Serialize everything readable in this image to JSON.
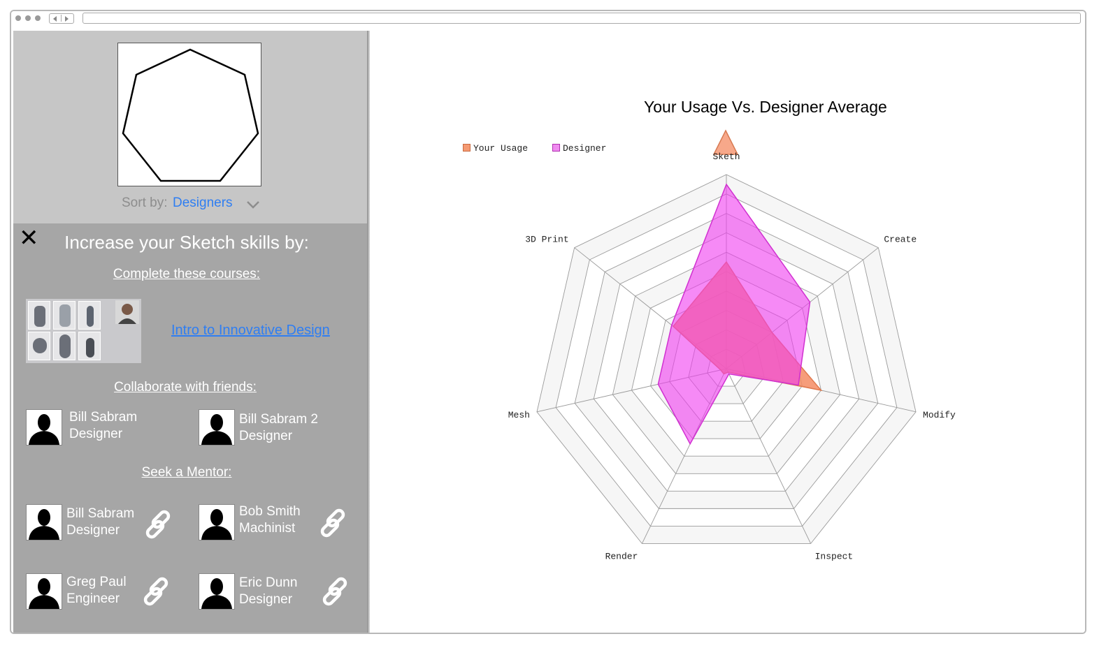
{
  "sidebar": {
    "sort_label": "Sort by:",
    "sort_value": "Designers",
    "heading": "Increase your Sketch skills by:",
    "courses_title": "Complete these courses:",
    "course_link": "Intro to Innovative Design",
    "collab_title": "Collaborate with friends:",
    "friends": [
      {
        "name": "Bill Sabram",
        "role": "Designer"
      },
      {
        "name": "Bill Sabram 2",
        "role": "Designer"
      }
    ],
    "mentor_title": "Seek a Mentor:",
    "mentors": [
      {
        "name": "Bill Sabram",
        "role": "Designer"
      },
      {
        "name": "Bob Smith",
        "role": "Machinist"
      },
      {
        "name": "Greg Paul",
        "role": "Engineer"
      },
      {
        "name": "Eric Dunn",
        "role": "Designer"
      }
    ]
  },
  "icons": {
    "close": "close-icon",
    "sort_chevron": "chevron-down-icon",
    "mentor_link": "link-icon",
    "avatar": "person-silhouette-icon"
  },
  "colors": {
    "accent_link": "#2f7ef2",
    "your_usage": "#f59a72",
    "designer": "#ee44ee"
  },
  "chart_data": {
    "type": "radar",
    "title": "Your Usage Vs. Designer Average",
    "axes": [
      "Sketh",
      "Create",
      "Modify",
      "Inspect",
      "Render",
      "Mesh",
      "3D Print"
    ],
    "rmax": 10,
    "rings": 10,
    "legend_position": "top-left",
    "series": [
      {
        "name": "Your Usage",
        "values": [
          5.5,
          3.0,
          5.0,
          0.2,
          0.3,
          0.3,
          3.5
        ],
        "color": "#f59a72"
      },
      {
        "name": "Designer",
        "values": [
          9.5,
          5.5,
          3.8,
          0.3,
          4.3,
          3.6,
          3.6
        ],
        "color": "#ee44ee"
      }
    ]
  }
}
